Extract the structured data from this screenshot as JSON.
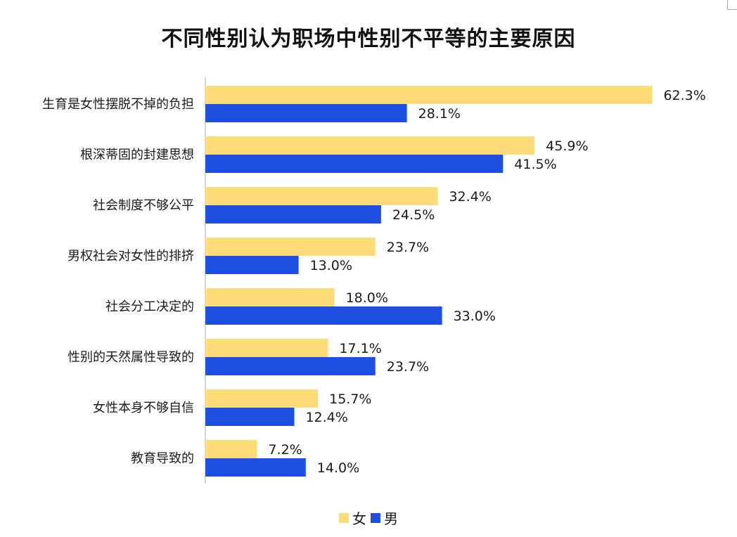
{
  "chart_data": {
    "type": "bar",
    "orientation": "horizontal",
    "title": "不同性别认为职场中性别不平等的主要原因",
    "xlabel": "",
    "ylabel": "",
    "xlim": [
      0,
      70
    ],
    "grid": false,
    "legend_position": "bottom",
    "categories": [
      "生育是女性摆脱不掉的负担",
      "根深蒂固的封建思想",
      "社会制度不够公平",
      "男权社会对女性的排挤",
      "社会分工决定的",
      "性别的天然属性导致的",
      "女性本身不够自信",
      "教育导致的"
    ],
    "series": [
      {
        "name": "女",
        "color": "#FFDB7A",
        "values": [
          62.3,
          45.9,
          32.4,
          23.7,
          18.0,
          17.1,
          15.7,
          7.2
        ]
      },
      {
        "name": "男",
        "color": "#1F4FE0",
        "values": [
          28.1,
          41.5,
          24.5,
          13.0,
          33.0,
          23.7,
          12.4,
          14.0
        ]
      }
    ],
    "value_suffix": "%"
  }
}
